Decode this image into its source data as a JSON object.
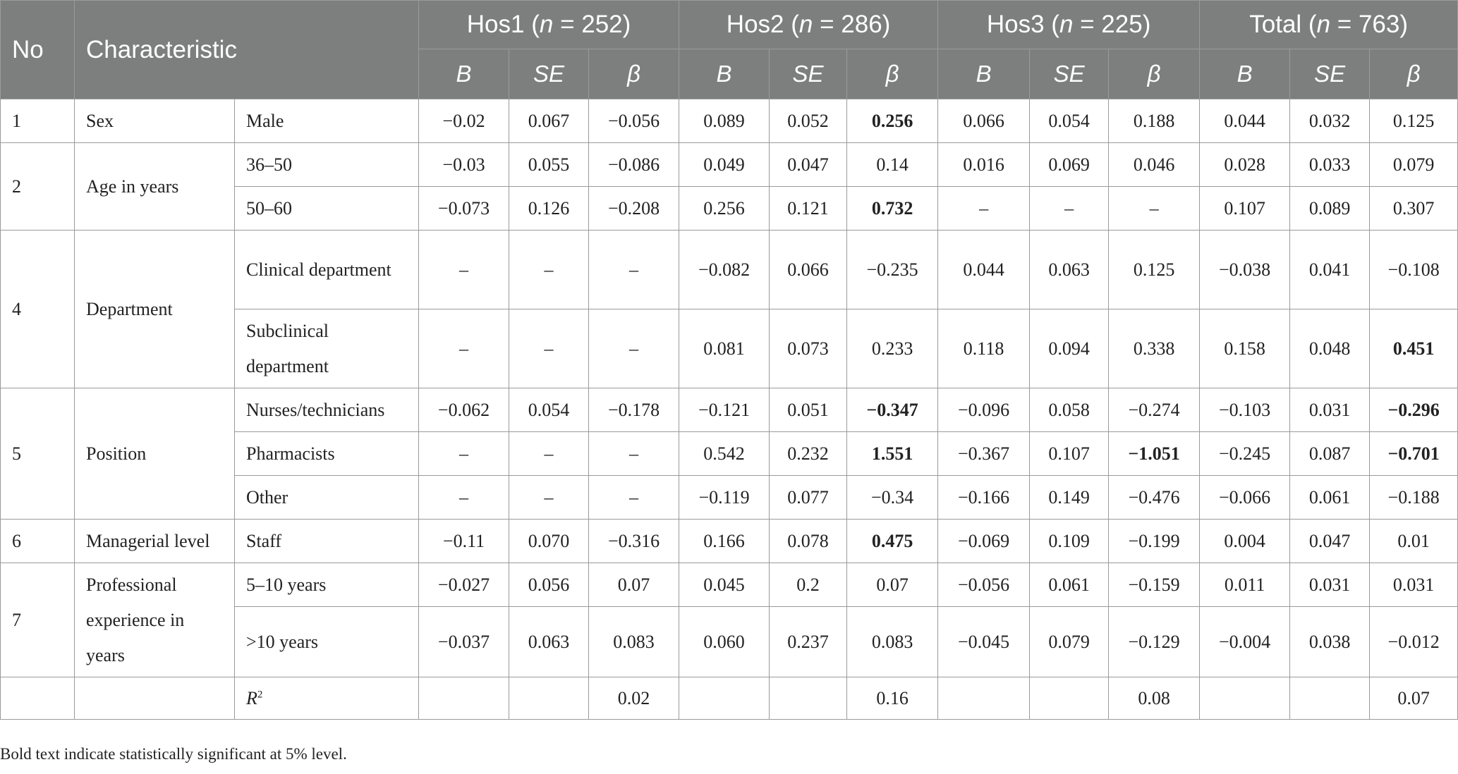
{
  "header": {
    "no": "No",
    "characteristic": "Characteristic",
    "groups": [
      "Hos1",
      "Hos2",
      "Hos3",
      "Total"
    ],
    "group_n": [
      "252",
      "286",
      "225",
      "763"
    ],
    "n_prefix": "n",
    "n_eq": " = ",
    "sub": [
      "B",
      "SE",
      "β"
    ]
  },
  "rows": [
    {
      "no": "1",
      "char": "Sex",
      "level": "Male",
      "cells": [
        "−0.02",
        "0.067",
        "−0.056",
        "0.089",
        "0.052",
        "0.256",
        "0.066",
        "0.054",
        "0.188",
        "0.044",
        "0.032",
        "0.125"
      ]
    },
    {
      "no": "2",
      "char": "Age in years",
      "level": "36–50",
      "cells": [
        "−0.03",
        "0.055",
        "−0.086",
        "0.049",
        "0.047",
        "0.14",
        "0.016",
        "0.069",
        "0.046",
        "0.028",
        "0.033",
        "0.079"
      ]
    },
    {
      "level": "50–60",
      "cells": [
        "−0.073",
        "0.126",
        "−0.208",
        "0.256",
        "0.121",
        "0.732",
        "–",
        "–",
        "–",
        "0.107",
        "0.089",
        "0.307"
      ]
    },
    {
      "no": "4",
      "char": "Department",
      "level": "Clinical department",
      "cells": [
        "–",
        "–",
        "–",
        "−0.082",
        "0.066",
        "−0.235",
        "0.044",
        "0.063",
        "0.125",
        "−0.038",
        "0.041",
        "−0.108"
      ]
    },
    {
      "level": "Subclinical department",
      "cells": [
        "–",
        "–",
        "–",
        "0.081",
        "0.073",
        "0.233",
        "0.118",
        "0.094",
        "0.338",
        "0.158",
        "0.048",
        "0.451"
      ]
    },
    {
      "no": "5",
      "char": "Position",
      "level": "Nurses/technicians",
      "cells": [
        "−0.062",
        "0.054",
        "−0.178",
        "−0.121",
        "0.051",
        "−0.347",
        "−0.096",
        "0.058",
        "−0.274",
        "−0.103",
        "0.031",
        "−0.296"
      ]
    },
    {
      "level": "Pharmacists",
      "cells": [
        "–",
        "–",
        "–",
        "0.542",
        "0.232",
        "1.551",
        "−0.367",
        "0.107",
        "−1.051",
        "−0.245",
        "0.087",
        "−0.701"
      ]
    },
    {
      "level": "Other",
      "cells": [
        "–",
        "–",
        "–",
        "−0.119",
        "0.077",
        "−0.34",
        "−0.166",
        "0.149",
        "−0.476",
        "−0.066",
        "0.061",
        "−0.188"
      ]
    },
    {
      "no": "6",
      "char": "Managerial level",
      "level": "Staff",
      "cells": [
        "−0.11",
        "0.070",
        "−0.316",
        "0.166",
        "0.078",
        "0.475",
        "−0.069",
        "0.109",
        "−0.199",
        "0.004",
        "0.047",
        "0.01"
      ]
    },
    {
      "no": "7",
      "char": "Professional experience in years",
      "level": "5–10 years",
      "cells": [
        "−0.027",
        "0.056",
        "0.07",
        "0.045",
        "0.2",
        "0.07",
        "−0.056",
        "0.061",
        "−0.159",
        "0.011",
        "0.031",
        "0.031"
      ]
    },
    {
      "level": ">10 years",
      "cells": [
        "−0.037",
        "0.063",
        "0.083",
        "0.060",
        "0.237",
        "0.083",
        "−0.045",
        "0.079",
        "−0.129",
        "−0.004",
        "0.038",
        "−0.012"
      ]
    }
  ],
  "r2": {
    "label": "R",
    "sup": "2",
    "values": [
      "0.02",
      "0.16",
      "0.08",
      "0.07"
    ]
  },
  "note": "Bold text indicate statistically significant at 5% level."
}
